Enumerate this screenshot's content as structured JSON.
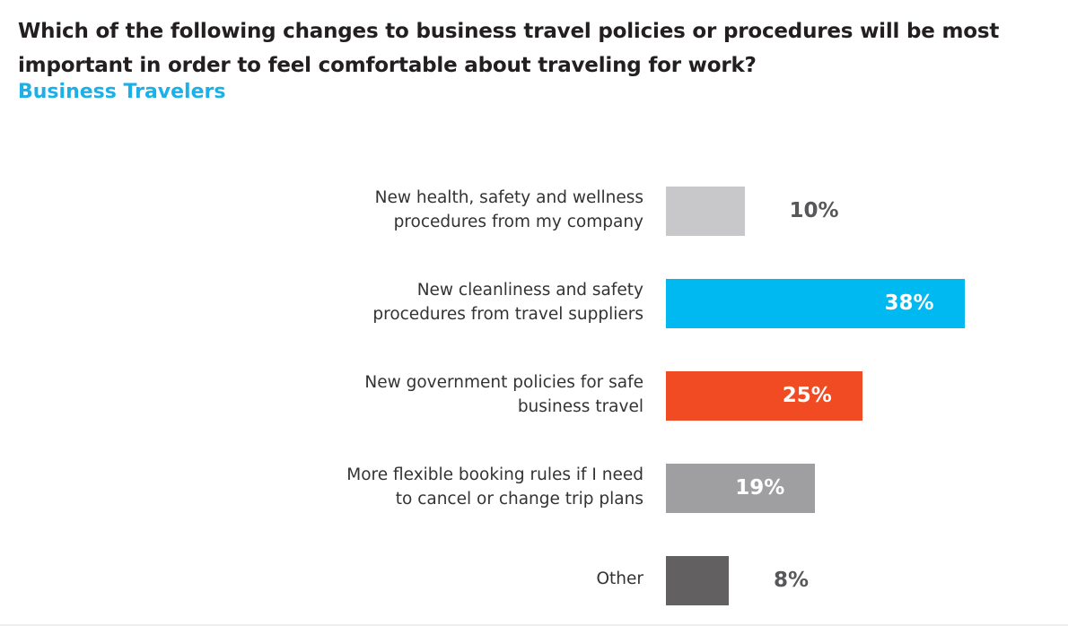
{
  "title": "Which of the following changes to business travel policies or procedures will be most important in order to feel comfortable about traveling for work?",
  "subtitle": "Business Travelers",
  "chart_data": {
    "type": "bar",
    "orientation": "horizontal",
    "title": "Which of the following changes to business travel policies or procedures will be most important in order to feel comfortable about traveling for work?",
    "subtitle": "Business Travelers",
    "categories": [
      "New health, safety and wellness procedures from my company",
      "New cleanliness and safety procedures from travel suppliers",
      "New government policies for safe business travel",
      "More flexible booking rules if I need to cancel or change trip plans",
      "Other"
    ],
    "values": [
      10,
      38,
      25,
      19,
      8
    ],
    "labels": [
      "10%",
      "38%",
      "25%",
      "19%",
      "8%"
    ],
    "colors": [
      "#c8c8ca",
      "#00b9f1",
      "#f04b23",
      "#9f9ea0",
      "#626061"
    ],
    "unit": "%",
    "xlim": [
      0,
      40
    ],
    "grid": false
  }
}
